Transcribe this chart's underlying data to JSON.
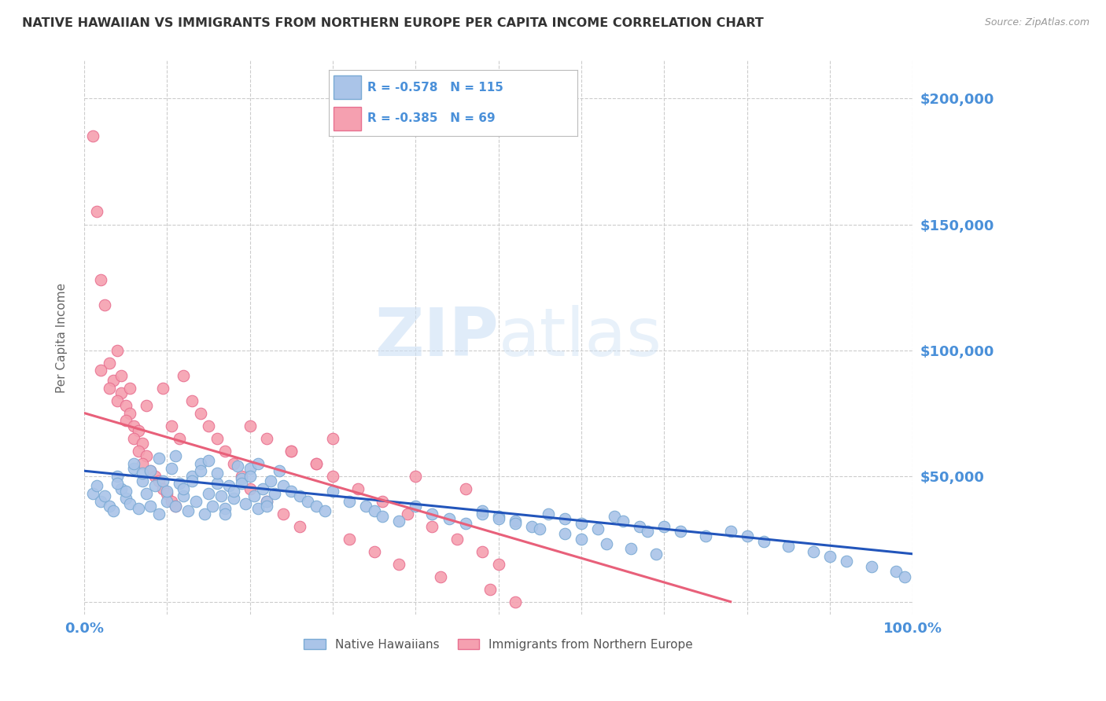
{
  "title": "NATIVE HAWAIIAN VS IMMIGRANTS FROM NORTHERN EUROPE PER CAPITA INCOME CORRELATION CHART",
  "source": "Source: ZipAtlas.com",
  "ylabel": "Per Capita Income",
  "xlim": [
    0,
    1.0
  ],
  "ylim": [
    -5000,
    215000
  ],
  "yticks": [
    0,
    50000,
    100000,
    150000,
    200000
  ],
  "ytick_labels": [
    "",
    "$50,000",
    "$100,000",
    "$150,000",
    "$200,000"
  ],
  "background_color": "#ffffff",
  "grid_color": "#cccccc",
  "title_color": "#333333",
  "title_fontsize": 11.5,
  "axis_label_color": "#4a90d9",
  "series1_color": "#aac4e8",
  "series2_color": "#f5a0b0",
  "series1_edge_color": "#7aaad4",
  "series2_edge_color": "#e87090",
  "line1_color": "#2255bb",
  "line2_color": "#e8607a",
  "series1_label": "Native Hawaiians",
  "series2_label": "Immigrants from Northern Europe",
  "R1": -0.578,
  "N1": 115,
  "R2": -0.385,
  "N2": 69,
  "watermark_zip": "ZIP",
  "watermark_atlas": "atlas",
  "line1_x0": 0.0,
  "line1_y0": 52000,
  "line1_x1": 1.0,
  "line1_y1": 19000,
  "line2_x0": 0.0,
  "line2_y0": 75000,
  "line2_x1": 0.78,
  "line2_y1": 0,
  "series1_x": [
    0.01,
    0.02,
    0.03,
    0.015,
    0.025,
    0.035,
    0.04,
    0.045,
    0.05,
    0.04,
    0.055,
    0.06,
    0.05,
    0.065,
    0.07,
    0.06,
    0.075,
    0.08,
    0.07,
    0.085,
    0.09,
    0.08,
    0.095,
    0.1,
    0.09,
    0.1,
    0.11,
    0.105,
    0.115,
    0.12,
    0.11,
    0.125,
    0.13,
    0.12,
    0.135,
    0.14,
    0.13,
    0.145,
    0.15,
    0.14,
    0.155,
    0.16,
    0.15,
    0.165,
    0.17,
    0.16,
    0.175,
    0.18,
    0.17,
    0.185,
    0.19,
    0.18,
    0.195,
    0.2,
    0.19,
    0.205,
    0.21,
    0.2,
    0.215,
    0.22,
    0.21,
    0.225,
    0.23,
    0.22,
    0.235,
    0.24,
    0.25,
    0.26,
    0.27,
    0.28,
    0.29,
    0.3,
    0.32,
    0.34,
    0.35,
    0.36,
    0.38,
    0.4,
    0.42,
    0.44,
    0.46,
    0.48,
    0.5,
    0.52,
    0.54,
    0.56,
    0.58,
    0.6,
    0.62,
    0.64,
    0.65,
    0.67,
    0.68,
    0.7,
    0.72,
    0.75,
    0.78,
    0.8,
    0.82,
    0.85,
    0.88,
    0.9,
    0.92,
    0.95,
    0.98,
    0.99,
    0.48,
    0.5,
    0.52,
    0.55,
    0.58,
    0.6,
    0.63,
    0.66,
    0.69
  ],
  "series1_y": [
    43000,
    40000,
    38000,
    46000,
    42000,
    36000,
    50000,
    45000,
    41000,
    47000,
    39000,
    53000,
    44000,
    37000,
    48000,
    55000,
    43000,
    38000,
    51000,
    46000,
    35000,
    52000,
    48000,
    40000,
    57000,
    44000,
    38000,
    53000,
    47000,
    42000,
    58000,
    36000,
    50000,
    45000,
    40000,
    55000,
    48000,
    35000,
    43000,
    52000,
    38000,
    47000,
    56000,
    42000,
    37000,
    51000,
    46000,
    41000,
    35000,
    54000,
    49000,
    44000,
    39000,
    53000,
    47000,
    42000,
    37000,
    50000,
    45000,
    40000,
    55000,
    48000,
    43000,
    38000,
    52000,
    46000,
    44000,
    42000,
    40000,
    38000,
    36000,
    44000,
    40000,
    38000,
    36000,
    34000,
    32000,
    38000,
    35000,
    33000,
    31000,
    36000,
    34000,
    32000,
    30000,
    35000,
    33000,
    31000,
    29000,
    34000,
    32000,
    30000,
    28000,
    30000,
    28000,
    26000,
    28000,
    26000,
    24000,
    22000,
    20000,
    18000,
    16000,
    14000,
    12000,
    10000,
    35000,
    33000,
    31000,
    29000,
    27000,
    25000,
    23000,
    21000,
    19000
  ],
  "series2_x": [
    0.01,
    0.015,
    0.02,
    0.025,
    0.03,
    0.02,
    0.035,
    0.04,
    0.03,
    0.045,
    0.04,
    0.05,
    0.045,
    0.055,
    0.05,
    0.06,
    0.055,
    0.065,
    0.06,
    0.07,
    0.065,
    0.075,
    0.07,
    0.08,
    0.075,
    0.085,
    0.09,
    0.095,
    0.1,
    0.095,
    0.105,
    0.11,
    0.105,
    0.115,
    0.12,
    0.13,
    0.14,
    0.15,
    0.16,
    0.17,
    0.18,
    0.19,
    0.2,
    0.22,
    0.24,
    0.26,
    0.28,
    0.3,
    0.32,
    0.35,
    0.38,
    0.4,
    0.43,
    0.46,
    0.49,
    0.52,
    0.25,
    0.28,
    0.3,
    0.33,
    0.36,
    0.39,
    0.42,
    0.45,
    0.48,
    0.5,
    0.2,
    0.22,
    0.25
  ],
  "series2_y": [
    185000,
    155000,
    128000,
    118000,
    95000,
    92000,
    88000,
    100000,
    85000,
    83000,
    80000,
    78000,
    90000,
    75000,
    72000,
    70000,
    85000,
    68000,
    65000,
    63000,
    60000,
    58000,
    55000,
    52000,
    78000,
    50000,
    48000,
    45000,
    43000,
    85000,
    40000,
    38000,
    70000,
    65000,
    90000,
    80000,
    75000,
    70000,
    65000,
    60000,
    55000,
    50000,
    45000,
    40000,
    35000,
    30000,
    55000,
    65000,
    25000,
    20000,
    15000,
    50000,
    10000,
    45000,
    5000,
    0,
    60000,
    55000,
    50000,
    45000,
    40000,
    35000,
    30000,
    25000,
    20000,
    15000,
    70000,
    65000,
    60000
  ]
}
